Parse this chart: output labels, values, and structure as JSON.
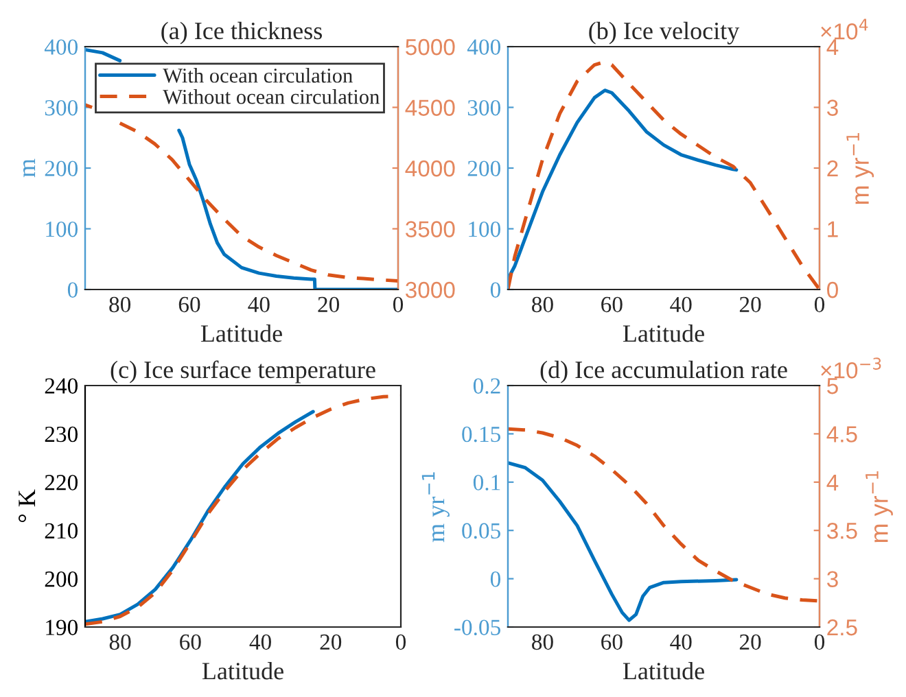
{
  "chart_data": [
    {
      "type": "line",
      "title": "(a) Ice thickness",
      "xlabel": "Latitude",
      "ylabel": "m",
      "xlim": [
        90,
        0
      ],
      "xticks": [
        80,
        60,
        40,
        20,
        0
      ],
      "ylim": [
        0,
        400
      ],
      "yticks": [
        0,
        100,
        200,
        300,
        400
      ],
      "y2lim": [
        3000,
        5000
      ],
      "y2ticks": [
        3000,
        3500,
        4000,
        4500,
        5000
      ],
      "grid": false,
      "legend": "top right",
      "series": [
        {
          "name": "With ocean circulation",
          "color": "#0072bd",
          "line_style": "solid",
          "axis": "y",
          "x": [
            90,
            85,
            80,
            75,
            70,
            65,
            63,
            62,
            60,
            58,
            56,
            54,
            52,
            50,
            45,
            40,
            35,
            30,
            25,
            24,
            23.9,
            20,
            10,
            0
          ],
          "values": [
            395,
            390,
            377,
            null,
            null,
            null,
            262,
            250,
            206,
            180,
            146,
            108,
            77,
            58,
            36,
            27,
            22,
            19,
            17,
            17,
            0,
            0,
            0,
            0
          ]
        },
        {
          "name": "Without ocean circulation",
          "color": "#d95319",
          "line_style": "dashed",
          "axis": "y2",
          "x": [
            90,
            88,
            85,
            82,
            80,
            75,
            70,
            65,
            60,
            55,
            50,
            45,
            40,
            35,
            30,
            25,
            20,
            15,
            10,
            5,
            0
          ],
          "values": [
            4520,
            4500,
            null,
            null,
            4370,
            4300,
            4200,
            4070,
            3900,
            3730,
            3580,
            3440,
            3350,
            3280,
            3220,
            3160,
            3120,
            3100,
            3090,
            3080,
            3070
          ]
        }
      ]
    },
    {
      "type": "line",
      "title": "(b) Ice velocity",
      "xlabel": "Latitude",
      "y2label": "m yr$^{−1}$",
      "xlim": [
        90,
        0
      ],
      "xticks": [
        80,
        60,
        40,
        20,
        0
      ],
      "ylim": [
        0,
        400
      ],
      "yticks": [
        0,
        100,
        200,
        300,
        400
      ],
      "y2lim": [
        0,
        4
      ],
      "y2ticks": [
        0,
        1,
        2,
        3,
        4
      ],
      "grid": false,
      "annotations": [
        "×10$^{4}$"
      ],
      "series": [
        {
          "color": "#0072bd",
          "line_style": "solid",
          "axis": "y",
          "x": [
            90,
            88,
            85,
            80,
            75,
            70,
            65,
            62,
            60,
            55,
            50,
            45,
            40,
            35,
            30,
            25,
            24
          ],
          "values": [
            17,
            39,
            85,
            161,
            222,
            275,
            316,
            328,
            324,
            294,
            260,
            238,
            222,
            213,
            205,
            198,
            197
          ]
        },
        {
          "color": "#d95319",
          "line_style": "dashed",
          "axis": "y2",
          "x": [
            90,
            88,
            85,
            80,
            75,
            70,
            65,
            62,
            60,
            55,
            50,
            45,
            40,
            35,
            30,
            25,
            20,
            15,
            10,
            5,
            0
          ],
          "values": [
            0,
            0.55,
            1.15,
            2.14,
            2.9,
            3.43,
            3.7,
            3.75,
            3.7,
            3.39,
            3.09,
            2.79,
            2.56,
            2.37,
            2.18,
            2.03,
            1.76,
            1.31,
            0.85,
            0.39,
            0
          ]
        }
      ]
    },
    {
      "type": "line",
      "title": "(c) Ice surface temperature",
      "xlabel": "Latitude",
      "ylabel": "° K",
      "xlim": [
        90,
        0
      ],
      "xticks": [
        80,
        60,
        40,
        20,
        0
      ],
      "ylim": [
        190,
        240
      ],
      "yticks": [
        190,
        200,
        210,
        220,
        230,
        240
      ],
      "grid": false,
      "series": [
        {
          "color": "#0072bd",
          "line_style": "solid",
          "axis": "y",
          "x": [
            90,
            85,
            80,
            75,
            70,
            65,
            60,
            55,
            50,
            45,
            40,
            35,
            30,
            25
          ],
          "values": [
            191.1,
            191.7,
            192.6,
            194.7,
            197.8,
            202.3,
            207.9,
            214,
            219.2,
            223.8,
            227.3,
            230.1,
            232.5,
            234.6
          ]
        },
        {
          "color": "#d95319",
          "line_style": "dashed",
          "axis": "y",
          "x": [
            90,
            85,
            80,
            75,
            70,
            65,
            60,
            55,
            50,
            45,
            40,
            35,
            30,
            25,
            20,
            15,
            10,
            5,
            0
          ],
          "values": [
            190.6,
            191.1,
            192.2,
            194.1,
            197.1,
            201.8,
            207.5,
            213.4,
            218.3,
            222.6,
            226,
            229,
            231.3,
            233.4,
            235.1,
            236.4,
            237.2,
            237.7,
            237.8
          ]
        }
      ]
    },
    {
      "type": "line",
      "title": "(d) Ice accumulation rate",
      "xlabel": "Latitude",
      "ylabel": "m yr$^{−1}$",
      "y2label": "m yr$^{−1}$",
      "xlim": [
        90,
        0
      ],
      "xticks": [
        80,
        60,
        40,
        20,
        0
      ],
      "ylim": [
        -0.05,
        0.2
      ],
      "yticks": [
        {
          "value": -0.05,
          "label": "-0.05"
        },
        0,
        0.05,
        0.1,
        0.15,
        0.2
      ],
      "y2lim": [
        2.5,
        5
      ],
      "y2ticks": [
        2.5,
        3,
        3.5,
        4,
        4.5,
        5
      ],
      "grid": false,
      "annotations": [
        "×10$^{−3}$"
      ],
      "series": [
        {
          "color": "#0072bd",
          "line_style": "solid",
          "axis": "y",
          "x": [
            90,
            85,
            80,
            75,
            70,
            65,
            60,
            57,
            55,
            53,
            51,
            49,
            45,
            40,
            30,
            24
          ],
          "values": [
            0.12,
            0.115,
            0.102,
            0.08,
            0.055,
            0.019,
            -0.016,
            -0.035,
            -0.043,
            -0.037,
            -0.018,
            -0.009,
            -0.004,
            -0.003,
            -0.002,
            -0.001
          ]
        },
        {
          "color": "#d95319",
          "line_style": "dashed",
          "axis": "y2",
          "x": [
            90,
            85,
            80,
            75,
            70,
            65,
            60,
            55,
            50,
            45,
            40,
            35,
            30,
            25,
            20,
            15,
            10,
            5,
            0
          ],
          "values": [
            4.55,
            4.54,
            4.51,
            4.46,
            4.38,
            4.27,
            4.13,
            3.97,
            3.78,
            3.55,
            3.36,
            3.19,
            3.08,
            2.98,
            2.91,
            2.84,
            2.8,
            2.78,
            2.77
          ]
        }
      ]
    }
  ]
}
